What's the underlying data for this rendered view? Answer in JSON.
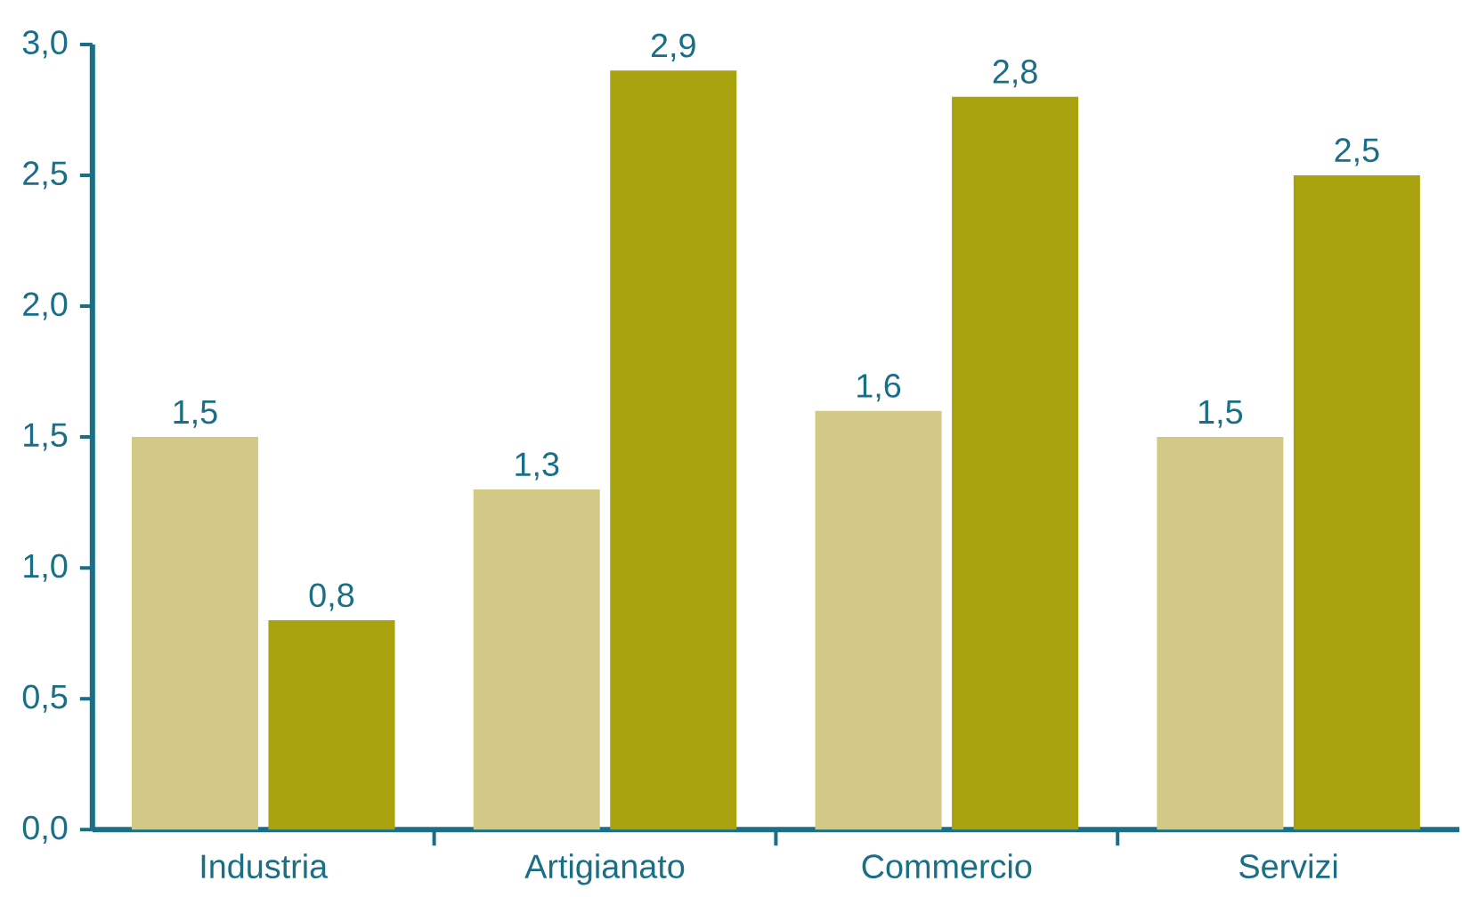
{
  "chart_data": {
    "type": "bar",
    "categories": [
      "Industria",
      "Artigianato",
      "Commercio",
      "Servizi"
    ],
    "series": [
      {
        "color": "#d3c987",
        "values": [
          1.5,
          1.3,
          1.6,
          1.5
        ],
        "value_labels": [
          "1,5",
          "1,3",
          "1,6",
          "1,5"
        ]
      },
      {
        "color": "#a8a20e",
        "values": [
          0.8,
          2.9,
          2.8,
          2.5
        ],
        "value_labels": [
          "0,8",
          "2,9",
          "2,8",
          "2,5"
        ]
      }
    ],
    "ylim": [
      0,
      3
    ],
    "yticks": [
      {
        "value": 0,
        "label": "0,0"
      },
      {
        "value": 0.5,
        "label": "0,5"
      },
      {
        "value": 1,
        "label": "1,0"
      },
      {
        "value": 1.5,
        "label": "1,5"
      },
      {
        "value": 2,
        "label": "2,0"
      },
      {
        "value": 2.5,
        "label": "2,5"
      },
      {
        "value": 3,
        "label": "3,0"
      }
    ],
    "grid": false
  }
}
